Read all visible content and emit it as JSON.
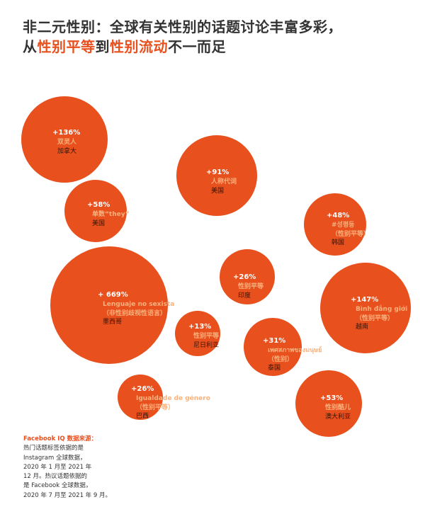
{
  "title": {
    "line1": "非二元性别：全球有关性别的话题讨论丰富多彩，",
    "line2_pre": "从",
    "line2_hl1": "性别平等",
    "line2_mid": "到",
    "line2_hl2": "性别流动",
    "line2_post": "不一而足"
  },
  "colors": {
    "bubble": "#E8501E",
    "topic": "#F9B27E",
    "highlight": "#E8501E"
  },
  "bubbles": [
    {
      "growth": "+136%",
      "topic": [
        "双灵人"
      ],
      "country": "加拿大"
    },
    {
      "growth": "+58%",
      "topic": [
        "单数“they”"
      ],
      "country": "美国"
    },
    {
      "growth": "+91%",
      "topic": [
        "人称代词"
      ],
      "country": "美国"
    },
    {
      "growth": "+48%",
      "topic": [
        "#성평등",
        "（性别平等）"
      ],
      "country": "韩国"
    },
    {
      "growth": "+ 669%",
      "topic": [
        "Lenguaje no sexista",
        "（非性别歧视性语言）"
      ],
      "country": "墨西哥"
    },
    {
      "growth": "+26%",
      "topic": [
        "性别平等"
      ],
      "country": "印度"
    },
    {
      "growth": "+147%",
      "topic": [
        "Bình đẳng giới",
        "（性别平等）"
      ],
      "country": "越南"
    },
    {
      "growth": "+13%",
      "topic": [
        "性别平等"
      ],
      "country": "尼日利亚"
    },
    {
      "growth": "+31%",
      "topic": [
        "เพศสภาพของมนุษย์",
        "（性别）"
      ],
      "country": "泰国"
    },
    {
      "growth": "+26%",
      "topic": [
        "Igualdade de género",
        "（性别平等）"
      ],
      "country": "巴西"
    },
    {
      "growth": "+53%",
      "topic": [
        "性别酷儿"
      ],
      "country": "澳大利亚"
    }
  ],
  "footer": {
    "source_label": "Facebook IQ 数据来源：",
    "lines": [
      "热门话题标签依据的是",
      "Instagram 全球数据，",
      "2020 年 1 月至 2021 年",
      "12 月。热议话题依据的",
      "是 Facebook 全球数据，",
      "2020 年 7 月至 2021 年 9 月。"
    ]
  }
}
